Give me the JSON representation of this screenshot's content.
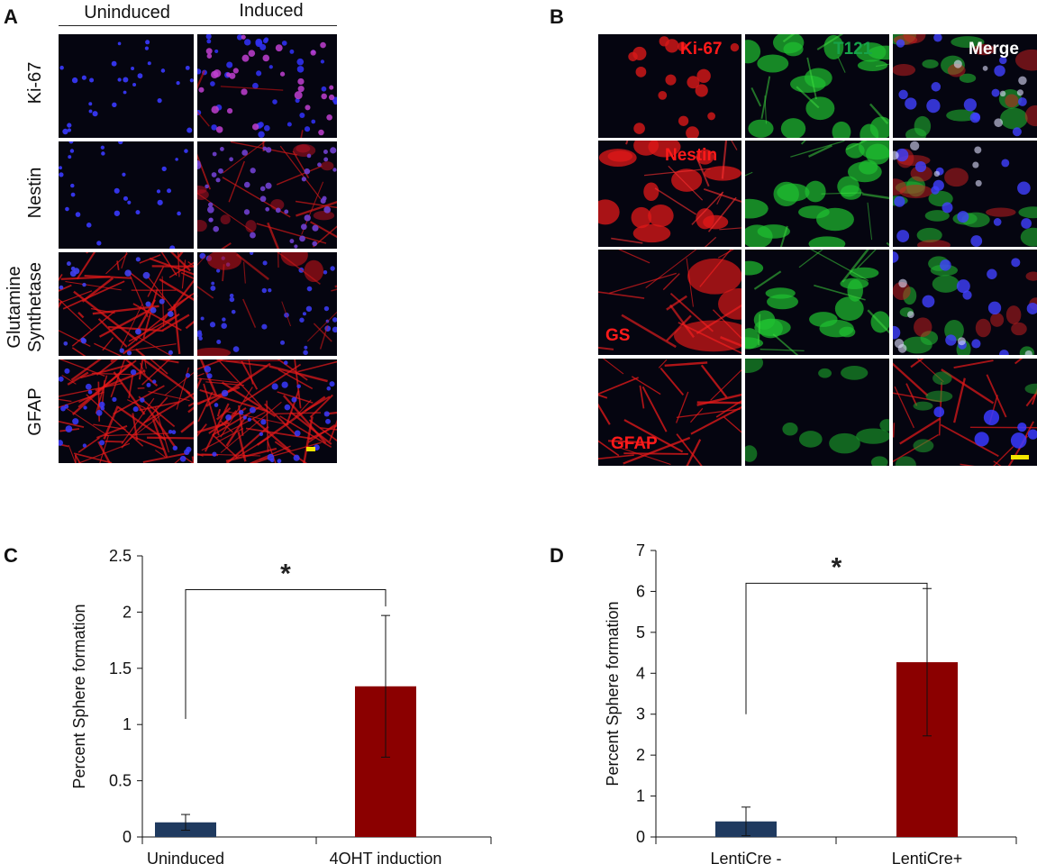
{
  "panel_a": {
    "letter": "A",
    "col_headers": [
      "Uninduced",
      "Induced"
    ],
    "rows": [
      {
        "label": "Ki-67",
        "uninduced_stain": "nuclei",
        "induced_stain": "ki67"
      },
      {
        "label": "Nestin",
        "uninduced_stain": "nuclei",
        "induced_stain": "nestin"
      },
      {
        "label": "Glutamine\nSynthetase",
        "uninduced_stain": "gs",
        "induced_stain": "gs_sparse"
      },
      {
        "label": "GFAP",
        "uninduced_stain": "gfap",
        "induced_stain": "gfap"
      }
    ]
  },
  "panel_b": {
    "letter": "B",
    "channel_labels": {
      "red": [
        "Ki-67",
        "Nestin",
        "GS",
        "GFAP"
      ],
      "green": "T121",
      "merge": "Merge"
    }
  },
  "colors": {
    "red_text": "#ff1a1a",
    "green_text": "#17a34a",
    "blue_bar": "#1f3a5f",
    "red_bar": "#8b0000",
    "scale_bar": "#f2e600"
  },
  "chart_data": [
    {
      "panel": "C",
      "type": "bar",
      "categories": [
        "Uninduced",
        "4OHT induction"
      ],
      "values": [
        0.13,
        1.34
      ],
      "errors": [
        0.07,
        0.63
      ],
      "ylabel": "Percent Sphere formation",
      "ylim": [
        0,
        2.5
      ],
      "yticks": [
        "0",
        "0.5",
        "1",
        "1.5",
        "2",
        "2.5"
      ],
      "significance": "*",
      "colors": [
        "#1f3a5f",
        "#8b0000"
      ]
    },
    {
      "panel": "D",
      "type": "bar",
      "categories": [
        "LentiCre -",
        "LentiCre+"
      ],
      "values": [
        0.38,
        4.27
      ],
      "errors": [
        0.35,
        1.8
      ],
      "ylabel": "Percent Sphere formation",
      "ylim": [
        0,
        7
      ],
      "yticks": [
        "0",
        "1",
        "2",
        "3",
        "4",
        "5",
        "6",
        "7"
      ],
      "significance": "*",
      "colors": [
        "#1f3a5f",
        "#8b0000"
      ]
    }
  ]
}
